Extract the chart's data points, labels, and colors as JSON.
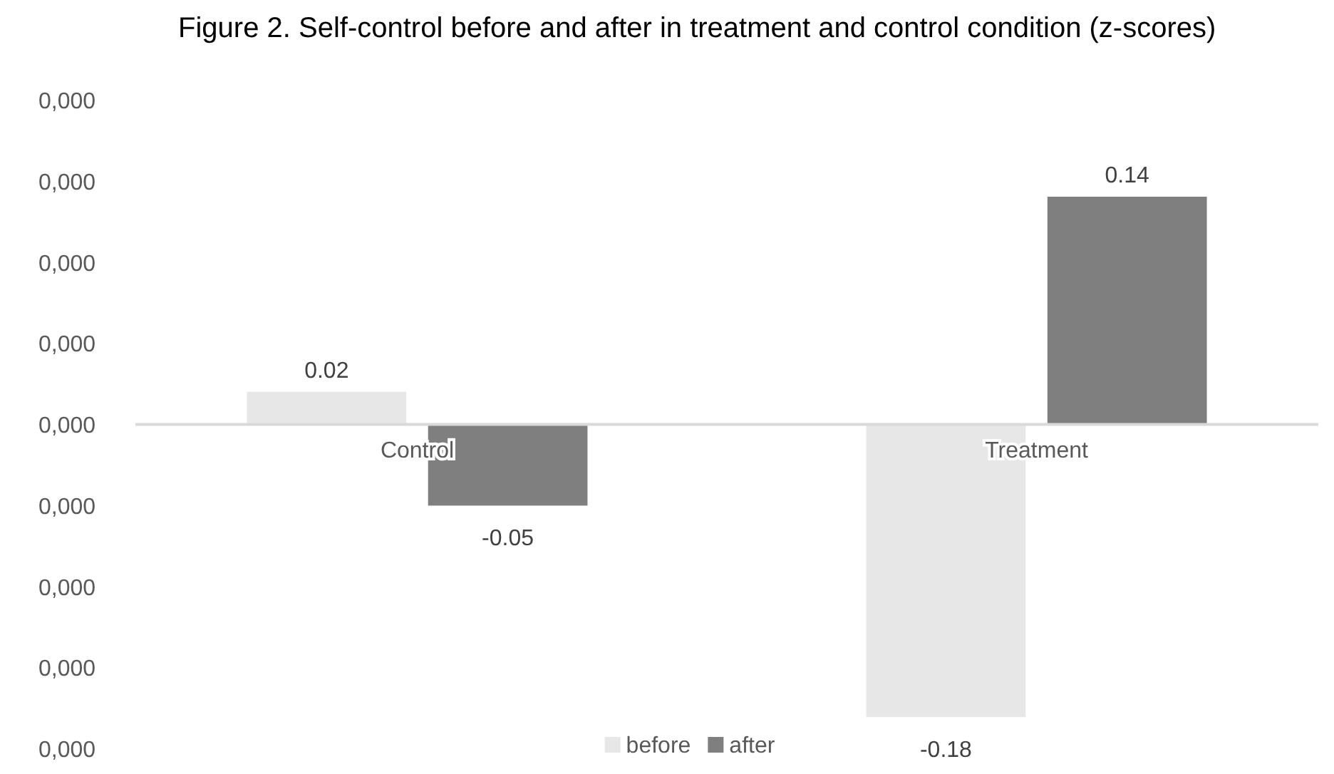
{
  "chart_data": {
    "type": "bar",
    "title": "Figure 2. Self-control before and after in treatment and control condition (z-scores)",
    "categories": [
      "Control",
      "Treatment"
    ],
    "series": [
      {
        "name": "before",
        "color": "#e7e7e7",
        "values": [
          0.02,
          -0.18
        ]
      },
      {
        "name": "after",
        "color": "#7f7f7f",
        "values": [
          -0.05,
          0.14
        ]
      }
    ],
    "annotations": [
      "0,000",
      "0,000",
      "0,000",
      "0,000",
      "0,000",
      "0,000",
      "0,000",
      "0,000",
      "0,000"
    ],
    "data_labels": true,
    "legend": "bottom"
  }
}
